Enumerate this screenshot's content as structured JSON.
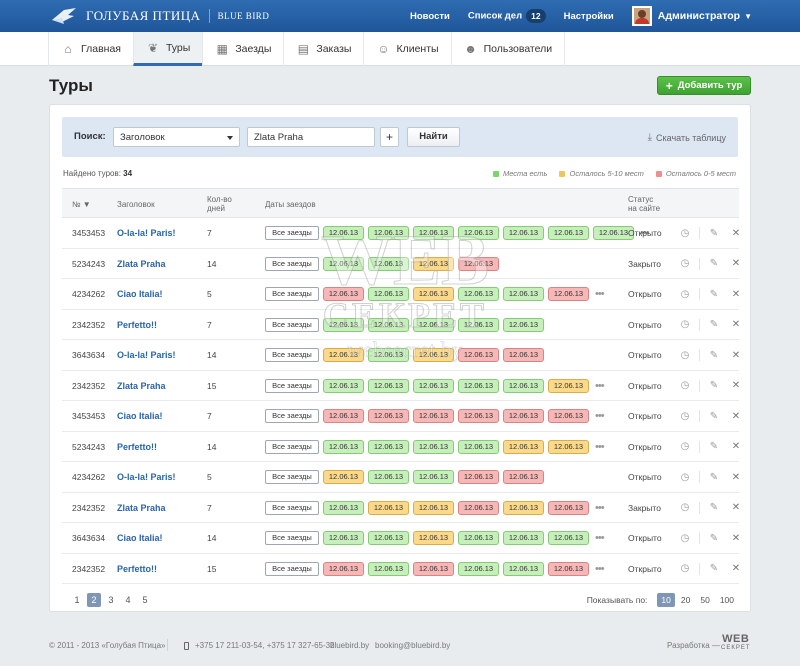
{
  "brand": {
    "name_ru": "ГОЛУБАЯ ПТИЦА",
    "name_en": "BLUE BIRD"
  },
  "topnav": {
    "news": "Новости",
    "todo": "Список дел",
    "todo_count": "12",
    "settings": "Настройки",
    "user": "Администратор"
  },
  "mainnav": [
    {
      "label": "Главная",
      "icon": "home-icon"
    },
    {
      "label": "Туры",
      "icon": "hands-icon",
      "active": true
    },
    {
      "label": "Заезды",
      "icon": "calendar-icon"
    },
    {
      "label": "Заказы",
      "icon": "document-icon"
    },
    {
      "label": "Клиенты",
      "icon": "user-icon"
    },
    {
      "label": "Пользователи",
      "icon": "users-icon"
    }
  ],
  "page": {
    "title": "Туры",
    "add_button": "Добавить тур"
  },
  "search": {
    "label": "Поиск:",
    "field": "Заголовок",
    "value": "Zlata Praha",
    "plus": "+",
    "find": "Найти",
    "download": "Скачать таблицу"
  },
  "summary": {
    "found_label": "Найдено туров:",
    "found_count": "34"
  },
  "legend": [
    {
      "label": "Места есть",
      "color": "#7cd46a"
    },
    {
      "label": "Осталось 5-10 мест",
      "color": "#f0c460"
    },
    {
      "label": "Осталось 0-5 мест",
      "color": "#ee8f8f"
    }
  ],
  "table": {
    "headers": {
      "num": "№ ▼",
      "title": "Заголовок",
      "days_1": "Кол-во",
      "days_2": "дней",
      "dates": "Даты заездов",
      "status_1": "Статус",
      "status_2": "на сайте"
    },
    "all_dates": "Все заезды",
    "date_label": "12.06.13"
  },
  "main": {
    "rows": [
      {
        "num": "3453453",
        "title": "O-la-la! Paris!",
        "days": "7",
        "pills": [
          "g",
          "g",
          "g",
          "g",
          "g",
          "g",
          "g"
        ],
        "more": true,
        "status": "Открыто"
      },
      {
        "num": "5234243",
        "title": "Zlata Praha",
        "days": "14",
        "pills": [
          "g",
          "g",
          "y",
          "r"
        ],
        "more": false,
        "status": "Закрыто"
      },
      {
        "num": "4234262",
        "title": "Ciao Italia!",
        "days": "5",
        "pills": [
          "r",
          "g",
          "y",
          "g",
          "g",
          "r"
        ],
        "more": true,
        "status": "Открыто"
      },
      {
        "num": "2342352",
        "title": "Perfetto!!",
        "days": "7",
        "pills": [
          "g",
          "g",
          "g",
          "g",
          "g"
        ],
        "more": false,
        "status": "Открыто"
      },
      {
        "num": "3643634",
        "title": "O-la-la! Paris!",
        "days": "14",
        "pills": [
          "y",
          "g",
          "y",
          "r",
          "r"
        ],
        "more": false,
        "status": "Открыто"
      },
      {
        "num": "2342352",
        "title": "Zlata Praha",
        "days": "15",
        "pills": [
          "g",
          "g",
          "g",
          "g",
          "g",
          "y"
        ],
        "more": true,
        "status": "Открыто"
      },
      {
        "num": "3453453",
        "title": "Ciao Italia!",
        "days": "7",
        "pills": [
          "r",
          "r",
          "r",
          "r",
          "r",
          "r"
        ],
        "more": true,
        "status": "Открыто"
      },
      {
        "num": "5234243",
        "title": "Perfetto!!",
        "days": "14",
        "pills": [
          "g",
          "g",
          "g",
          "g",
          "y",
          "y"
        ],
        "more": true,
        "status": "Открыто"
      },
      {
        "num": "4234262",
        "title": "O-la-la! Paris!",
        "days": "5",
        "pills": [
          "y",
          "g",
          "g",
          "r",
          "r"
        ],
        "more": false,
        "status": "Открыто"
      },
      {
        "num": "2342352",
        "title": "Zlata Praha",
        "days": "7",
        "pills": [
          "g",
          "y",
          "y",
          "r",
          "y",
          "r"
        ],
        "more": true,
        "status": "Закрыто"
      },
      {
        "num": "3643634",
        "title": "Ciao Italia!",
        "days": "14",
        "pills": [
          "g",
          "g",
          "y",
          "g",
          "g",
          "g"
        ],
        "more": true,
        "status": "Открыто"
      },
      {
        "num": "2342352",
        "title": "Perfetto!!",
        "days": "15",
        "pills": [
          "r",
          "g",
          "r",
          "g",
          "g",
          "r"
        ],
        "more": true,
        "status": "Открыто"
      }
    ]
  },
  "pagination": {
    "pages": [
      "1",
      "2",
      "3",
      "4",
      "5"
    ],
    "current": "2",
    "perpage_label": "Показывать по:",
    "perpage": [
      "10",
      "20",
      "50",
      "100"
    ],
    "perpage_current": "10"
  },
  "footer": {
    "copyright": "© 2011 - 2013 «Голубая Птица»",
    "phones": "+375 17 211-03-54, +375 17 327-65-32",
    "site": "bluebird.by",
    "email": "booking@bluebird.by",
    "dev_label": "Разработка —",
    "dev_logo_1": "WEB",
    "dev_logo_2": "СЕКРЕТ"
  },
  "watermark": {
    "line1": "WEB",
    "line2": "СЕКРЕТ",
    "line3": "websecret.by"
  }
}
